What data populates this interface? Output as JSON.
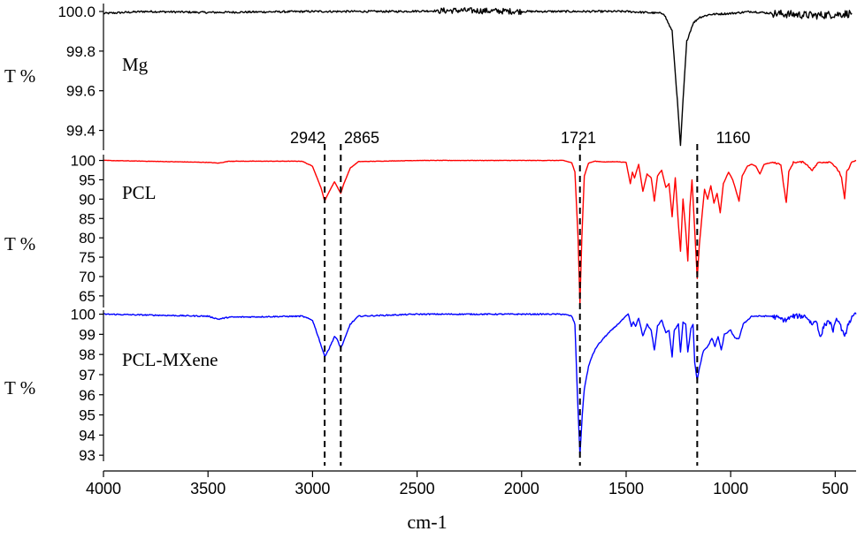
{
  "chart_data": {
    "type": "line",
    "x": {
      "label": "cm-1",
      "range": [
        4000,
        400
      ],
      "reversed": true,
      "ticks": [
        4000,
        3500,
        3000,
        2500,
        2000,
        1500,
        1000,
        500
      ]
    },
    "annotations": [
      {
        "label": "2942",
        "x": 2942
      },
      {
        "label": "2865",
        "x": 2865
      },
      {
        "label": "1721",
        "x": 1721
      },
      {
        "label": "1160",
        "x": 1160
      }
    ],
    "panels": [
      {
        "name": "Mg",
        "ylabel": "T %",
        "ylim": [
          99.3,
          100.04
        ],
        "yticks": [
          99.4,
          99.6,
          99.8,
          100.0
        ],
        "ytick_labels": [
          "99.4",
          "99.6",
          "99.8",
          "100.0"
        ],
        "color": "#000000",
        "baseline": 100.0,
        "noise": 0.005,
        "points": [
          [
            4000,
            99.99
          ],
          [
            3800,
            100.0
          ],
          [
            3500,
            99.995
          ],
          [
            3000,
            100.0
          ],
          [
            2600,
            100.0
          ],
          [
            2300,
            100.005
          ],
          [
            2000,
            100.0
          ],
          [
            1500,
            100.0
          ],
          [
            1320,
            99.99
          ],
          [
            1280,
            99.9
          ],
          [
            1255,
            99.55
          ],
          [
            1240,
            99.32
          ],
          [
            1228,
            99.55
          ],
          [
            1210,
            99.85
          ],
          [
            1180,
            99.94
          ],
          [
            1150,
            99.97
          ],
          [
            1100,
            99.985
          ],
          [
            1000,
            99.99
          ],
          [
            900,
            100.0
          ],
          [
            800,
            99.99
          ],
          [
            700,
            99.985
          ],
          [
            600,
            99.98
          ],
          [
            500,
            99.985
          ],
          [
            420,
            99.99
          ]
        ]
      },
      {
        "name": "PCL",
        "ylabel": "T %",
        "ylim": [
          62,
          101.5
        ],
        "yticks": [
          65,
          70,
          75,
          80,
          85,
          90,
          95,
          100
        ],
        "ytick_labels": [
          "65",
          "70",
          "75",
          "80",
          "85",
          "90",
          "95",
          "100"
        ],
        "color": "#ff0000",
        "baseline": 100.0,
        "noise": 0.05,
        "points": [
          [
            4000,
            100
          ],
          [
            3500,
            99.5
          ],
          [
            3450,
            99.3
          ],
          [
            3400,
            99.8
          ],
          [
            3050,
            99.8
          ],
          [
            3000,
            98.5
          ],
          [
            2960,
            93
          ],
          [
            2942,
            89.5
          ],
          [
            2920,
            92
          ],
          [
            2895,
            94.5
          ],
          [
            2880,
            93
          ],
          [
            2865,
            91.5
          ],
          [
            2850,
            94
          ],
          [
            2820,
            98
          ],
          [
            2780,
            99.7
          ],
          [
            2500,
            100
          ],
          [
            1800,
            100
          ],
          [
            1760,
            99.4
          ],
          [
            1745,
            97
          ],
          [
            1730,
            80
          ],
          [
            1721,
            63
          ],
          [
            1712,
            80
          ],
          [
            1700,
            96
          ],
          [
            1680,
            99.3
          ],
          [
            1650,
            99.8
          ],
          [
            1600,
            99.6
          ],
          [
            1550,
            99.7
          ],
          [
            1500,
            99.5
          ],
          [
            1480,
            94
          ],
          [
            1470,
            97
          ],
          [
            1460,
            95.5
          ],
          [
            1440,
            99
          ],
          [
            1420,
            92
          ],
          [
            1400,
            96.5
          ],
          [
            1380,
            95.5
          ],
          [
            1365,
            89.5
          ],
          [
            1350,
            96
          ],
          [
            1330,
            97.5
          ],
          [
            1310,
            93
          ],
          [
            1295,
            94
          ],
          [
            1280,
            85.5
          ],
          [
            1265,
            95.5
          ],
          [
            1250,
            83.5
          ],
          [
            1240,
            76.5
          ],
          [
            1228,
            90
          ],
          [
            1215,
            82
          ],
          [
            1205,
            74
          ],
          [
            1195,
            88
          ],
          [
            1185,
            95
          ],
          [
            1172,
            82
          ],
          [
            1160,
            69.5
          ],
          [
            1150,
            78
          ],
          [
            1135,
            87
          ],
          [
            1125,
            92.5
          ],
          [
            1110,
            90
          ],
          [
            1095,
            93.5
          ],
          [
            1080,
            89
          ],
          [
            1065,
            91.5
          ],
          [
            1050,
            86.5
          ],
          [
            1035,
            94
          ],
          [
            1010,
            97
          ],
          [
            990,
            95
          ],
          [
            960,
            89.5
          ],
          [
            945,
            96
          ],
          [
            920,
            98.5
          ],
          [
            900,
            99
          ],
          [
            880,
            98.5
          ],
          [
            860,
            96.5
          ],
          [
            840,
            99
          ],
          [
            800,
            99.5
          ],
          [
            760,
            99
          ],
          [
            745,
            93
          ],
          [
            734,
            89
          ],
          [
            722,
            97
          ],
          [
            700,
            99.5
          ],
          [
            650,
            99.6
          ],
          [
            610,
            97.5
          ],
          [
            580,
            99.5
          ],
          [
            520,
            99.6
          ],
          [
            480,
            97
          ],
          [
            470,
            95.5
          ],
          [
            455,
            90
          ],
          [
            445,
            97
          ],
          [
            420,
            99.6
          ],
          [
            400,
            100
          ]
        ]
      },
      {
        "name": "PCL-MXene",
        "ylabel": "T %",
        "ylim": [
          92.7,
          100.2
        ],
        "yticks": [
          93,
          94,
          95,
          96,
          97,
          98,
          99,
          100
        ],
        "ytick_labels": [
          "93",
          "94",
          "95",
          "96",
          "97",
          "98",
          "99",
          "100"
        ],
        "color": "#0000ff",
        "baseline": 100.0,
        "noise": 0.03,
        "points": [
          [
            4000,
            100
          ],
          [
            3500,
            99.9
          ],
          [
            3450,
            99.75
          ],
          [
            3400,
            99.85
          ],
          [
            3050,
            99.9
          ],
          [
            3000,
            99.7
          ],
          [
            2970,
            98.8
          ],
          [
            2942,
            97.9
          ],
          [
            2920,
            98.3
          ],
          [
            2895,
            98.9
          ],
          [
            2880,
            98.7
          ],
          [
            2865,
            98.3
          ],
          [
            2845,
            98.8
          ],
          [
            2820,
            99.5
          ],
          [
            2780,
            99.9
          ],
          [
            2500,
            100
          ],
          [
            1800,
            100
          ],
          [
            1760,
            99.9
          ],
          [
            1745,
            99.5
          ],
          [
            1733,
            96
          ],
          [
            1721,
            93
          ],
          [
            1710,
            95
          ],
          [
            1700,
            96.3
          ],
          [
            1680,
            97.4
          ],
          [
            1660,
            98
          ],
          [
            1640,
            98.4
          ],
          [
            1600,
            98.9
          ],
          [
            1550,
            99.4
          ],
          [
            1510,
            99.8
          ],
          [
            1490,
            100
          ],
          [
            1475,
            99.4
          ],
          [
            1465,
            99.6
          ],
          [
            1455,
            99.4
          ],
          [
            1440,
            99.8
          ],
          [
            1420,
            98.9
          ],
          [
            1400,
            99.5
          ],
          [
            1380,
            99.2
          ],
          [
            1365,
            98.2
          ],
          [
            1350,
            99.4
          ],
          [
            1330,
            99.7
          ],
          [
            1310,
            99.1
          ],
          [
            1295,
            99.2
          ],
          [
            1280,
            97.9
          ],
          [
            1270,
            99.2
          ],
          [
            1250,
            99.5
          ],
          [
            1240,
            98.1
          ],
          [
            1228,
            99.6
          ],
          [
            1215,
            99.5
          ],
          [
            1205,
            98.1
          ],
          [
            1190,
            99.3
          ],
          [
            1180,
            99.5
          ],
          [
            1172,
            97.6
          ],
          [
            1160,
            96.7
          ],
          [
            1150,
            97.3
          ],
          [
            1130,
            98.2
          ],
          [
            1110,
            98.4
          ],
          [
            1090,
            98.8
          ],
          [
            1075,
            98.4
          ],
          [
            1060,
            98.9
          ],
          [
            1045,
            98.2
          ],
          [
            1030,
            99
          ],
          [
            1000,
            99.2
          ],
          [
            980,
            98.8
          ],
          [
            960,
            98.8
          ],
          [
            940,
            99.5
          ],
          [
            900,
            99.9
          ],
          [
            850,
            99.9
          ],
          [
            800,
            99.9
          ],
          [
            740,
            99.7
          ],
          [
            700,
            99.9
          ],
          [
            640,
            99.9
          ],
          [
            610,
            99.5
          ],
          [
            590,
            99.7
          ],
          [
            570,
            98.8
          ],
          [
            555,
            99.4
          ],
          [
            530,
            99.7
          ],
          [
            510,
            99.2
          ],
          [
            490,
            99.8
          ],
          [
            470,
            99.3
          ],
          [
            455,
            98.8
          ],
          [
            440,
            99.5
          ],
          [
            420,
            99.8
          ],
          [
            400,
            100
          ]
        ]
      }
    ]
  }
}
